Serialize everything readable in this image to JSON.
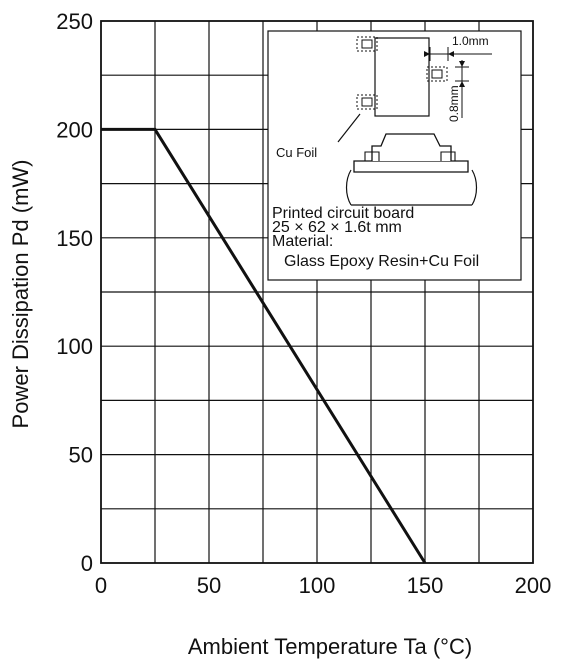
{
  "chart_data": {
    "type": "line",
    "title": "",
    "xlabel": "Ambient Temperature   Ta   (°C)",
    "ylabel": "Power Dissipation   Pd   (mW)",
    "xlim": [
      0,
      200
    ],
    "ylim": [
      0,
      250
    ],
    "x_ticks": [
      0,
      50,
      100,
      150,
      200
    ],
    "y_ticks": [
      0,
      50,
      100,
      150,
      200,
      250
    ],
    "x_tick_labels": [
      "0",
      "50",
      "100",
      "150",
      "200"
    ],
    "y_tick_labels": [
      "0",
      "50",
      "100",
      "150",
      "200",
      "250"
    ],
    "grid": true,
    "grid_minor_x_step": 25,
    "grid_minor_y_step": 25,
    "series": [
      {
        "x": [
          0,
          25,
          150
        ],
        "y": [
          200,
          200,
          0
        ],
        "color": "#111111"
      }
    ],
    "inset": {
      "dimension_width": "1.0mm",
      "dimension_height": "0.8mm",
      "foil_label": "Cu Foil",
      "board_lines": [
        "Printed circuit board",
        "25 × 62 × 1.6t mm",
        "Material:",
        "Glass Epoxy Resin+Cu Foil"
      ]
    }
  }
}
